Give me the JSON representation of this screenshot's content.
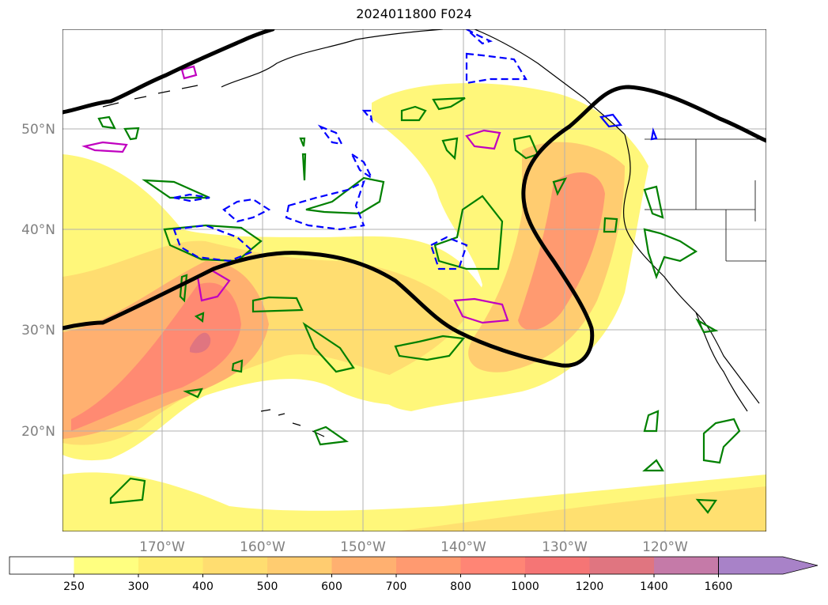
{
  "title": "2024011800 F024",
  "map": {
    "lat_labels": [
      "50°N",
      "40°N",
      "30°N",
      "20°N"
    ],
    "lon_labels": [
      "170°W",
      "160°W",
      "150°W",
      "140°W",
      "130°W",
      "120°W"
    ],
    "gridlines": true,
    "colors": {
      "jet_axis": "#000000",
      "contour_green": "#008000",
      "contour_blue": "#0000ff",
      "contour_magenta": "#c000c0",
      "coastline": "#000000"
    }
  },
  "colorbar": {
    "ticks": [
      "250",
      "300",
      "400",
      "500",
      "600",
      "700",
      "800",
      "1000",
      "1200",
      "1400",
      "1600"
    ],
    "colors": [
      "#ffffff",
      "#ffff80",
      "#ffee70",
      "#ffdd70",
      "#ffcc70",
      "#ffb070",
      "#ff9a70",
      "#ff8575",
      "#f57575",
      "#e07580",
      "#c57aa8",
      "#a882c8"
    ],
    "extend": "max"
  }
}
